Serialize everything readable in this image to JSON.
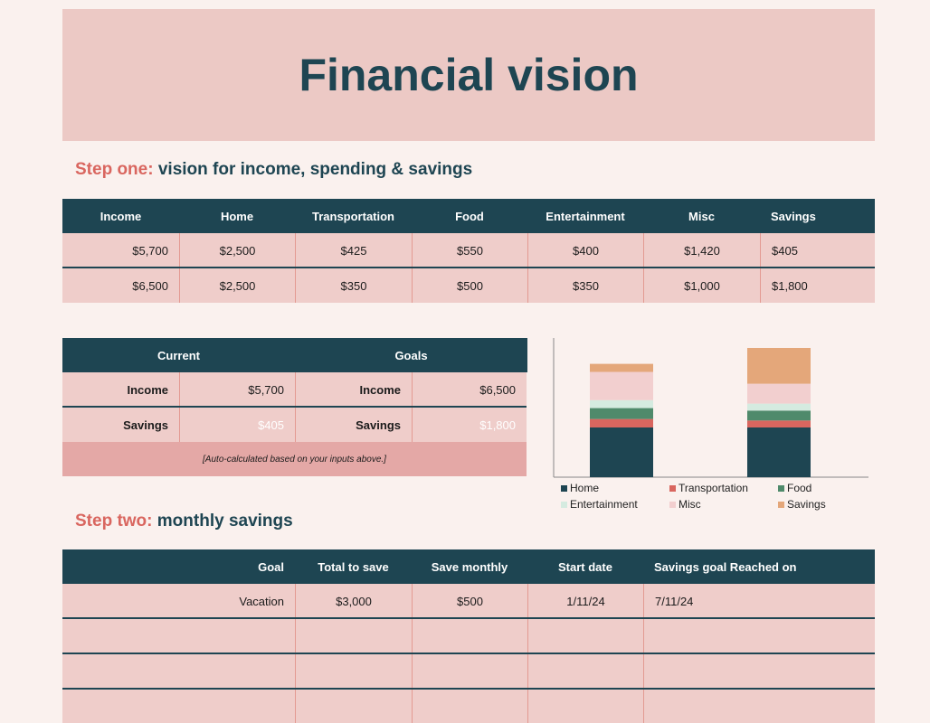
{
  "header": {
    "title": "Financial vision"
  },
  "step_one": {
    "heading_prefix": "Step one:",
    "heading": "vision for income, spending & savings",
    "table": {
      "columns": [
        "Income",
        "Home",
        "Transportation",
        "Food",
        "Entertainment",
        "Misc",
        "Savings"
      ],
      "rows": [
        [
          "$5,700",
          "$2,500",
          "$425",
          "$550",
          "$400",
          "$1,420",
          "$405"
        ],
        [
          "$6,500",
          "$2,500",
          "$350",
          "$500",
          "$350",
          "$1,000",
          "$1,800"
        ]
      ]
    }
  },
  "summary": {
    "groups": [
      "Current",
      "Goals"
    ],
    "rows": [
      [
        "Income",
        "$5,700",
        "Income",
        "$6,500"
      ],
      [
        "Savings",
        "$405",
        "Savings",
        "$1,800"
      ]
    ],
    "note": "[Auto-calculated based on your inputs above.]"
  },
  "chart_data": {
    "type": "bar",
    "stacked": true,
    "categories": [
      null,
      null
    ],
    "series": [
      {
        "name": "Home",
        "color": "#1e4552",
        "values": [
          2500,
          2500
        ]
      },
      {
        "name": "Transportation",
        "color": "#d9665f",
        "values": [
          425,
          350
        ]
      },
      {
        "name": "Food",
        "color": "#4f8a6b",
        "values": [
          550,
          500
        ]
      },
      {
        "name": "Entertainment",
        "color": "#d5ebe0",
        "values": [
          400,
          350
        ]
      },
      {
        "name": "Misc",
        "color": "#f2cfcf",
        "values": [
          1420,
          1000
        ]
      },
      {
        "name": "Savings",
        "color": "#e4a77a",
        "values": [
          405,
          1800
        ]
      }
    ],
    "ylim": [
      0,
      7000
    ],
    "legend": "bottom"
  },
  "step_two": {
    "heading_prefix": "Step two:",
    "heading": "monthly savings",
    "table": {
      "columns": [
        "Goal",
        "Total to save",
        "Save monthly",
        "Start date",
        "Savings goal Reached on"
      ],
      "rows": [
        [
          "Vacation",
          "$3,000",
          "$500",
          "1/11/24",
          "7/11/24"
        ]
      ]
    }
  }
}
